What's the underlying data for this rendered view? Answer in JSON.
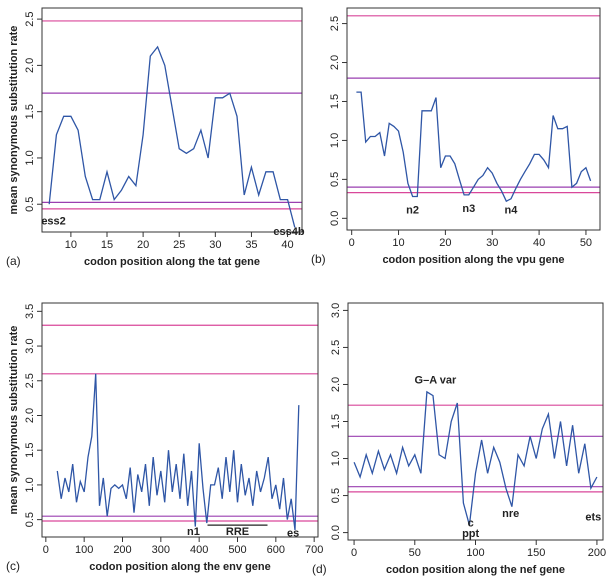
{
  "chart_data": [
    {
      "type": "line",
      "panel": "(a)",
      "x_label": "codon position along the tat gene",
      "y_label": "mean synonymous substitution rate",
      "x": [
        7,
        8,
        9,
        10,
        11,
        12,
        13,
        14,
        15,
        16,
        17,
        18,
        19,
        20,
        21,
        22,
        23,
        24,
        25,
        26,
        27,
        28,
        29,
        30,
        31,
        32,
        33,
        34,
        35,
        36,
        37,
        38,
        39,
        40,
        41
      ],
      "series": [
        {
          "color": "#2f56a6",
          "values": [
            0.5,
            1.25,
            1.45,
            1.45,
            1.3,
            0.8,
            0.55,
            0.55,
            0.85,
            0.55,
            0.65,
            0.8,
            0.7,
            1.25,
            2.1,
            2.2,
            2.0,
            1.55,
            1.1,
            1.05,
            1.1,
            1.3,
            1.0,
            1.65,
            1.65,
            1.7,
            1.45,
            0.6,
            0.9,
            0.6,
            0.85,
            0.85,
            0.55,
            0.55,
            0.25
          ]
        }
      ],
      "xlim": [
        6,
        42
      ],
      "xticks": [
        10,
        15,
        20,
        25,
        30,
        35,
        40
      ],
      "ylim": [
        0.2,
        2.62
      ],
      "yticks": [
        0.5,
        {
          "value": 1,
          "label": "1.0"
        },
        1.5,
        {
          "value": 2,
          "label": "2.0"
        },
        2.5
      ],
      "ref_lines": [
        {
          "value": 2.48,
          "color": "#d9479a"
        },
        {
          "value": 1.7,
          "color": "#9a3fb0"
        },
        {
          "value": 0.52,
          "color": "#9a3fb0"
        },
        {
          "value": 0.45,
          "color": "#d9479a"
        }
      ],
      "annotations": [
        {
          "text": "ess2",
          "x": 7.6,
          "y": 0.31,
          "color": "#222"
        },
        {
          "text": "ess4b",
          "x": 40.2,
          "y": 0.2,
          "color": "#222"
        }
      ]
    },
    {
      "type": "line",
      "panel": "(b)",
      "x_label": "codon position along the vpu gene",
      "x": [
        1,
        2,
        3,
        4,
        5,
        6,
        7,
        8,
        9,
        10,
        11,
        12,
        13,
        14,
        15,
        16,
        17,
        18,
        19,
        20,
        21,
        22,
        23,
        24,
        25,
        26,
        27,
        28,
        29,
        30,
        31,
        32,
        33,
        34,
        35,
        36,
        37,
        38,
        39,
        40,
        41,
        42,
        43,
        44,
        45,
        46,
        47,
        48,
        49,
        50,
        51
      ],
      "series": [
        {
          "color": "#2f56a6",
          "values": [
            1.62,
            1.62,
            0.98,
            1.05,
            1.05,
            1.1,
            0.8,
            1.22,
            1.18,
            1.12,
            0.85,
            0.45,
            0.28,
            0.28,
            1.38,
            1.38,
            1.38,
            1.55,
            0.65,
            0.8,
            0.8,
            0.7,
            0.5,
            0.3,
            0.3,
            0.4,
            0.5,
            0.55,
            0.65,
            0.58,
            0.45,
            0.35,
            0.22,
            0.25,
            0.38,
            0.5,
            0.6,
            0.7,
            0.82,
            0.82,
            0.75,
            0.65,
            1.32,
            1.15,
            1.15,
            1.18,
            0.4,
            0.45,
            0.6,
            0.65,
            0.48
          ]
        }
      ],
      "xlim": [
        -1,
        53
      ],
      "xticks": [
        0,
        10,
        20,
        30,
        40,
        50
      ],
      "ylim": [
        -0.15,
        2.7
      ],
      "yticks": [
        {
          "value": 0,
          "label": "0.0"
        },
        0.5,
        {
          "value": 1,
          "label": "1.0"
        },
        1.5,
        {
          "value": 2,
          "label": "2.0"
        },
        2.5
      ],
      "ref_lines": [
        {
          "value": 2.6,
          "color": "#d9479a"
        },
        {
          "value": 1.8,
          "color": "#9a3fb0"
        },
        {
          "value": 0.4,
          "color": "#9a3fb0"
        },
        {
          "value": 0.33,
          "color": "#d9479a"
        }
      ],
      "annotations": [
        {
          "text": "n2",
          "x": 13,
          "y": 0.1,
          "color": "#d8252f"
        },
        {
          "text": "n3",
          "x": 25,
          "y": 0.12,
          "color": "#d8252f"
        },
        {
          "text": "n4",
          "x": 34,
          "y": 0.1,
          "color": "#d8252f"
        }
      ]
    },
    {
      "type": "line",
      "panel": "(c)",
      "x_label": "codon position along the env gene",
      "y_label": "mean synonymous substitution rate",
      "x": [
        30,
        40,
        50,
        60,
        70,
        80,
        90,
        100,
        110,
        120,
        130,
        140,
        150,
        160,
        170,
        180,
        190,
        200,
        210,
        220,
        230,
        240,
        250,
        260,
        270,
        280,
        290,
        300,
        310,
        320,
        330,
        340,
        350,
        360,
        370,
        380,
        390,
        400,
        410,
        420,
        430,
        440,
        450,
        460,
        470,
        480,
        490,
        500,
        510,
        520,
        530,
        540,
        550,
        560,
        570,
        580,
        590,
        600,
        610,
        620,
        630,
        640,
        650,
        660
      ],
      "series": [
        {
          "color": "#2f56a6",
          "values": [
            1.2,
            0.8,
            1.1,
            0.9,
            1.3,
            0.75,
            1.05,
            0.9,
            1.4,
            1.7,
            2.6,
            0.7,
            1.1,
            0.55,
            0.95,
            1.0,
            0.95,
            1.0,
            0.8,
            1.25,
            0.6,
            1.15,
            0.9,
            1.3,
            0.7,
            1.4,
            0.85,
            1.2,
            0.75,
            1.5,
            0.9,
            1.3,
            0.8,
            1.45,
            0.7,
            1.2,
            0.4,
            1.6,
            0.95,
            0.45,
            1.0,
            1.0,
            1.25,
            0.8,
            1.4,
            0.9,
            1.5,
            0.75,
            1.3,
            0.85,
            1.1,
            0.7,
            1.2,
            0.9,
            1.1,
            1.4,
            0.8,
            1.0,
            0.65,
            1.1,
            0.5,
            0.8,
            0.35,
            2.15
          ]
        }
      ],
      "xlim": [
        -10,
        710
      ],
      "xticks": [
        0,
        100,
        200,
        300,
        400,
        500,
        600,
        700
      ],
      "ylim": [
        0.25,
        3.62
      ],
      "yticks": [
        0.5,
        {
          "value": 1,
          "label": "1.0"
        },
        1.5,
        {
          "value": 2,
          "label": "2.0"
        },
        2.5,
        {
          "value": 3,
          "label": "3.0"
        },
        3.5
      ],
      "ref_lines": [
        {
          "value": 3.3,
          "color": "#d9479a"
        },
        {
          "value": 2.6,
          "color": "#d9479a"
        },
        {
          "value": 0.55,
          "color": "#9a3fb0"
        },
        {
          "value": 0.48,
          "color": "#d9479a"
        }
      ],
      "annotations": [
        {
          "text": "n1",
          "x": 385,
          "y": 0.32,
          "color": "#d8252f"
        },
        {
          "text": "RRE",
          "x": 500,
          "y": 0.32,
          "color": "#222",
          "underline": true
        },
        {
          "text": "es",
          "x": 645,
          "y": 0.3,
          "color": "#222"
        }
      ]
    },
    {
      "type": "line",
      "panel": "(d)",
      "x_label": "codon position along the nef gene",
      "x": [
        0,
        5,
        10,
        15,
        20,
        25,
        30,
        35,
        40,
        45,
        50,
        55,
        60,
        65,
        70,
        75,
        80,
        85,
        90,
        95,
        100,
        105,
        110,
        115,
        120,
        125,
        130,
        135,
        140,
        145,
        150,
        155,
        160,
        165,
        170,
        175,
        180,
        185,
        190,
        195,
        200
      ],
      "series": [
        {
          "color": "#2f56a6",
          "values": [
            0.95,
            0.75,
            1.05,
            0.8,
            1.1,
            0.85,
            1.05,
            0.8,
            1.15,
            0.9,
            1.05,
            0.8,
            1.9,
            1.85,
            1.05,
            1.0,
            1.5,
            1.75,
            0.4,
            0.1,
            0.8,
            1.25,
            0.8,
            1.15,
            0.95,
            0.6,
            0.35,
            1.05,
            0.9,
            1.3,
            1.0,
            1.4,
            1.6,
            1.0,
            1.5,
            0.9,
            1.45,
            0.8,
            1.2,
            0.6,
            0.75
          ]
        }
      ],
      "xlim": [
        -5,
        205
      ],
      "xticks": [
        0,
        50,
        100,
        150,
        200
      ],
      "ylim": [
        -0.1,
        3.1
      ],
      "yticks": [
        {
          "value": 0,
          "label": "0.0"
        },
        0.5,
        {
          "value": 1,
          "label": "1.0"
        },
        1.5,
        {
          "value": 2,
          "label": "2.0"
        },
        2.5,
        {
          "value": 3,
          "label": "3.0"
        }
      ],
      "ref_lines": [
        {
          "value": 1.72,
          "color": "#d9479a"
        },
        {
          "value": 1.3,
          "color": "#9a3fb0"
        },
        {
          "value": 0.62,
          "color": "#9a3fb0"
        },
        {
          "value": 0.55,
          "color": "#d9479a"
        }
      ],
      "annotations": [
        {
          "text": "G–A  var",
          "x": 67,
          "y": 2.05,
          "color": "#222"
        },
        {
          "text": "c",
          "x": 96,
          "y": 0.12,
          "color": "#222"
        },
        {
          "text": "ppt",
          "x": 96,
          "y": -0.02,
          "color": "#222"
        },
        {
          "text": "nre",
          "x": 129,
          "y": 0.25,
          "color": "#222"
        },
        {
          "text": "ets",
          "x": 197,
          "y": 0.2,
          "color": "#222"
        }
      ]
    }
  ]
}
